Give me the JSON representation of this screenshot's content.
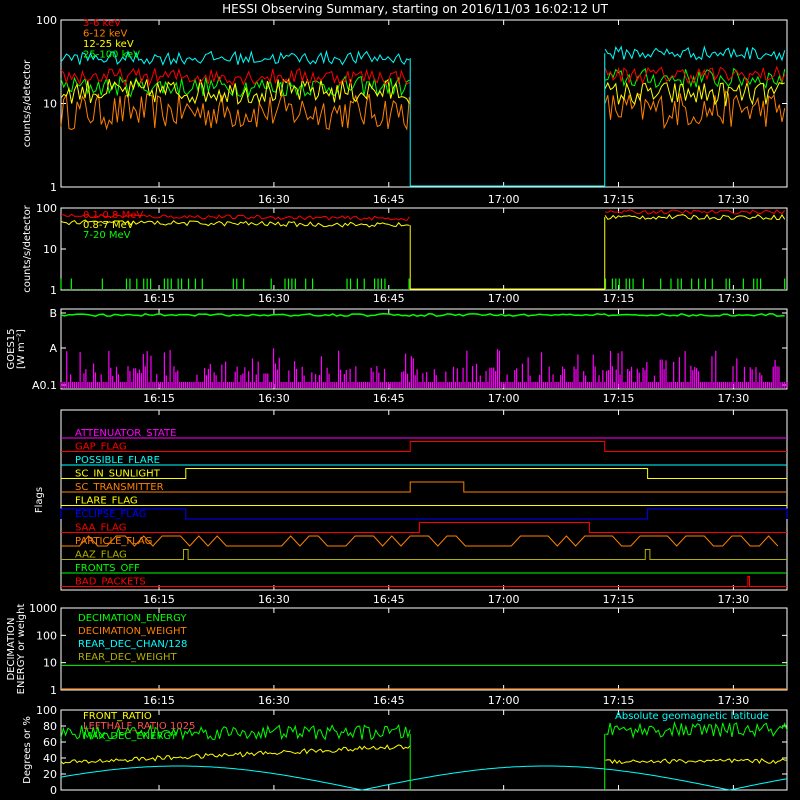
{
  "title": "HESSI Observing Summary, starting on 2016/11/03 16:02:12 UT",
  "x_ticks": [
    "16:15",
    "16:30",
    "16:45",
    "17:00",
    "17:15",
    "17:30"
  ],
  "x_tick_minutes": [
    15,
    30,
    45,
    60,
    75,
    90
  ],
  "time_window_minutes": [
    2.2,
    97.0
  ],
  "gaps": [
    [
      47.8,
      73.2
    ]
  ],
  "colors": {
    "frame": "#ffffff",
    "text": "#ffffff",
    "red": "#ff0000",
    "orange": "#ff8000",
    "yellow": "#ffff00",
    "green": "#00ff00",
    "cyan": "#00ffff",
    "magenta": "#ff00ff",
    "blue": "#0000ff",
    "olive": "#b0b000",
    "pink": "#ff5050"
  },
  "chart_data": [
    {
      "type": "line",
      "name": "low-energy-counts",
      "ylabel": "counts/s/detector",
      "ylog": true,
      "ylim": [
        1,
        100
      ],
      "yticks": [
        "1",
        "10",
        "100"
      ],
      "series": [
        {
          "name": "3-6 keV",
          "color": "#ff0000",
          "before": 21,
          "after": 22,
          "noise": 0.1
        },
        {
          "name": "6-12 keV",
          "color": "#ff8000",
          "before": 8,
          "after": 8.5,
          "noise": 0.22
        },
        {
          "name": "12-25 keV",
          "color": "#ffff00",
          "before": 14,
          "after": 13,
          "noise": 0.15
        },
        {
          "name": "25-100 keV",
          "color": "#00ff00",
          "before": 16,
          "after": 20,
          "noise": 0.12
        },
        {
          "name": "",
          "color": "#00ffff",
          "before": 35,
          "after": 40,
          "noise": 0.08
        }
      ]
    },
    {
      "type": "line",
      "name": "high-energy-counts",
      "ylabel": "counts/s/detector",
      "ylog": true,
      "ylim": [
        1,
        100
      ],
      "yticks": [
        "1",
        "10",
        "100"
      ],
      "series": [
        {
          "name": "0.1-0.8 MeV",
          "color": "#ff0000",
          "before": 65,
          "after": 80,
          "noise": 0.05
        },
        {
          "name": "0.8-7 MeV",
          "color": "#ffff00",
          "before": 45,
          "after": 60,
          "noise": 0.06
        },
        {
          "name": "7-20 MeV",
          "color": "#00ff00",
          "before": 1.3,
          "after": 1.3,
          "noise": 0.5
        }
      ]
    },
    {
      "type": "line",
      "name": "goes-flux",
      "ylabel": "GOES15",
      "ylabel2": "[W m⁻²]",
      "ylog": true,
      "yticks": [
        "A0.1",
        "A",
        "B"
      ],
      "series": [
        {
          "name": "",
          "color": "#00ff00",
          "level": "B"
        },
        {
          "name": "",
          "color": "#ff00ff",
          "level": "A0.1"
        }
      ]
    },
    {
      "type": "line",
      "name": "flags",
      "ylabel": "Flags",
      "flags": [
        {
          "name": "ATTENUATOR_STATE",
          "color": "#ff00ff",
          "on": []
        },
        {
          "name": "GAP_FLAG",
          "color": "#ff0000",
          "on": [
            [
              47.8,
              73.2
            ]
          ]
        },
        {
          "name": "POSSIBLE_FLARE",
          "color": "#00ffff",
          "on": []
        },
        {
          "name": "SC_IN_SUNLIGHT",
          "color": "#ffff00",
          "on": [
            [
              18.5,
              78.8
            ]
          ]
        },
        {
          "name": "SC_TRANSMITTER",
          "color": "#ff8000",
          "on": [
            [
              47.8,
              54.8
            ]
          ]
        },
        {
          "name": "FLARE_FLAG",
          "color": "#ffff00",
          "on": []
        },
        {
          "name": "ECLIPSE_FLAG",
          "color": "#0000ff",
          "on": [
            [
              2.2,
              18.5
            ],
            [
              78.8,
              97.0
            ]
          ]
        },
        {
          "name": "SAA_FLAG",
          "color": "#ff0000",
          "on": [
            [
              49.0,
              71.2
            ]
          ]
        },
        {
          "name": "PARTICLE_FLAG",
          "color": "#ff8000",
          "on": []
        },
        {
          "name": "AAZ_FLAG",
          "color": "#b0b000",
          "on": [
            [
              18.2,
              18.8
            ],
            [
              78.5,
              79.1
            ]
          ]
        },
        {
          "name": "FRONTS_OFF",
          "color": "#00ff00",
          "on": []
        },
        {
          "name": "BAD_PACKETS",
          "color": "#ff0000",
          "on": [
            [
              91.9,
              92.1
            ]
          ]
        }
      ]
    },
    {
      "type": "line",
      "name": "decimation",
      "ylabel": "DECIMATION",
      "ylabel2": "ENERGY or weight",
      "ylog": true,
      "ylim": [
        1,
        1000
      ],
      "yticks": [
        "1",
        "10",
        "100",
        "1000"
      ],
      "series": [
        {
          "name": "DECIMATION_ENERGY",
          "color": "#00ff00",
          "value": 8
        },
        {
          "name": "DECIMATION_WEIGHT",
          "color": "#ff8000",
          "value": 1.1
        },
        {
          "name": "REAR_DEC_CHAN/128",
          "color": "#00ffff",
          "value": null
        },
        {
          "name": "REAR_DEC_WEIGHT",
          "color": "#b0b000",
          "value": null
        }
      ]
    },
    {
      "type": "line",
      "name": "ratios",
      "ylabel": "Degrees or %",
      "ylim": [
        0,
        100
      ],
      "yticks": [
        "0",
        "20",
        "40",
        "60",
        "80",
        "100"
      ],
      "series": [
        {
          "name": "FRONT_RATIO",
          "color": "#ffff00"
        },
        {
          "name": "LEFTHALF_RATIO 1025",
          "color": "#ff5050"
        },
        {
          "name": "MAX_DEC_ENERGY",
          "color": "#00ff00"
        },
        {
          "name": "Absolute geomagnetic latitude",
          "color": "#00ffff"
        }
      ]
    }
  ]
}
